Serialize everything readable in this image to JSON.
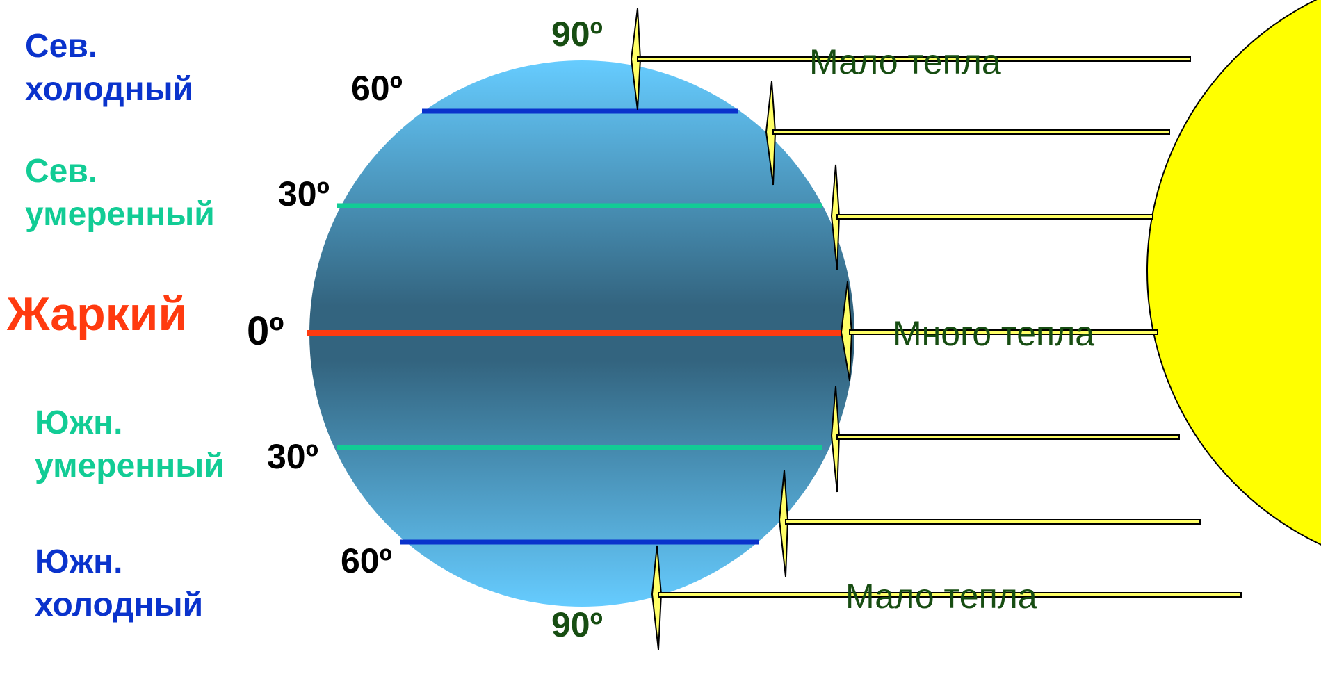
{
  "zones": {
    "north_cold": {
      "line1": "Сев.",
      "line2": "холодный"
    },
    "north_temperate": {
      "line1": "Сев.",
      "line2": "умеренный"
    },
    "hot": {
      "label": "Жаркий"
    },
    "south_temperate": {
      "line1": "Южн.",
      "line2": "умеренный"
    },
    "south_cold": {
      "line1": "Южн.",
      "line2": "холодный"
    }
  },
  "latitudes": {
    "north_pole": "90º",
    "north_60": "60º",
    "north_30": "30º",
    "equator": "0º",
    "south_30": "30º",
    "south_60": "60º",
    "south_pole": "90º"
  },
  "heat_labels": {
    "top": "Мало тепла",
    "middle": "Много тепла",
    "bottom": "Мало тепла"
  },
  "colors": {
    "globe_center": "#33647f",
    "globe_edge": "#66ccff",
    "cold_line": "#0a33cc",
    "temperate_line": "#12cc95",
    "equator_line": "#ff3a0f",
    "sun": "#ffff00",
    "ray": "#ffff66"
  }
}
